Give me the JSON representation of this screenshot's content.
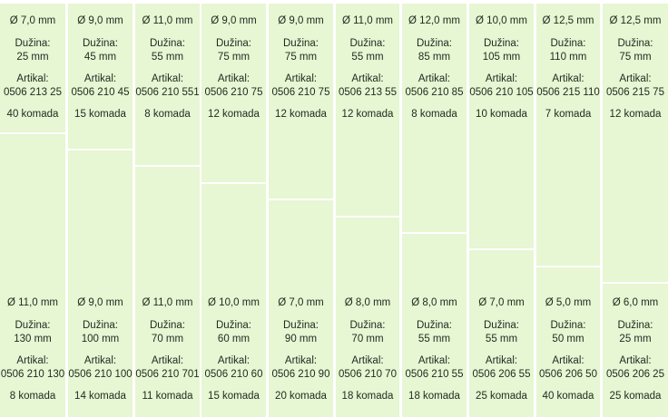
{
  "colors": {
    "cell_background": "#e7f6d3",
    "divider": "#ffffff",
    "text": "#1e2a1e"
  },
  "columns": [
    {
      "top": {
        "diameter": "Ø 7,0 mm",
        "length_label": "Dužina:",
        "length": "25 mm",
        "article_label": "Artikal:",
        "article": "0506 213 25",
        "quantity": "40 komada"
      },
      "bottom": {
        "diameter": "Ø 11,0 mm",
        "length_label": "Dužina:",
        "length": "130 mm",
        "article_label": "Artikal:",
        "article": "0506 210 130",
        "quantity": "8 komada"
      }
    },
    {
      "top": {
        "diameter": "Ø 9,0 mm",
        "length_label": "Dužina:",
        "length": "45 mm",
        "article_label": "Artikal:",
        "article": "0506 210 45",
        "quantity": "15 komada"
      },
      "bottom": {
        "diameter": "Ø 9,0 mm",
        "length_label": "Dužina:",
        "length": "100 mm",
        "article_label": "Artikal:",
        "article": "0506 210 100",
        "quantity": "14 komada"
      }
    },
    {
      "top": {
        "diameter": "Ø 11,0 mm",
        "length_label": "Dužina:",
        "length": "55 mm",
        "article_label": "Artikal:",
        "article": "0506 210 551",
        "quantity": "8 komada"
      },
      "bottom": {
        "diameter": "Ø 11,0 mm",
        "length_label": "Dužina:",
        "length": "70 mm",
        "article_label": "Artikal:",
        "article": "0506 210 701",
        "quantity": "11 komada"
      }
    },
    {
      "top": {
        "diameter": "Ø 9,0 mm",
        "length_label": "Dužina:",
        "length": "75 mm",
        "article_label": "Artikal:",
        "article": "0506 210 75",
        "quantity": "12 komada"
      },
      "bottom": {
        "diameter": "Ø 10,0 mm",
        "length_label": "Dužina:",
        "length": "60 mm",
        "article_label": "Artikal:",
        "article": "0506 210 60",
        "quantity": "15 komada"
      }
    },
    {
      "top": {
        "diameter": "Ø 9,0 mm",
        "length_label": "Dužina:",
        "length": "75 mm",
        "article_label": "Artikal:",
        "article": "0506 210 75",
        "quantity": "12 komada"
      },
      "bottom": {
        "diameter": "Ø 7,0 mm",
        "length_label": "Dužina:",
        "length": "90 mm",
        "article_label": "Artikal:",
        "article": "0506 210 90",
        "quantity": "20 komada"
      }
    },
    {
      "top": {
        "diameter": "Ø 11,0 mm",
        "length_label": "Dužina:",
        "length": "55 mm",
        "article_label": "Artikal:",
        "article": "0506 213 55",
        "quantity": "12 komada"
      },
      "bottom": {
        "diameter": "Ø 8,0 mm",
        "length_label": "Dužina:",
        "length": "70 mm",
        "article_label": "Artikal:",
        "article": "0506 210 70",
        "quantity": "18 komada"
      }
    },
    {
      "top": {
        "diameter": "Ø 12,0 mm",
        "length_label": "Dužina:",
        "length": "85 mm",
        "article_label": "Artikal:",
        "article": "0506 210 85",
        "quantity": "8 komada"
      },
      "bottom": {
        "diameter": "Ø 8,0 mm",
        "length_label": "Dužina:",
        "length": "55 mm",
        "article_label": "Artikal:",
        "article": "0506 210 55",
        "quantity": "18 komada"
      }
    },
    {
      "top": {
        "diameter": "Ø 10,0 mm",
        "length_label": "Dužina:",
        "length": "105 mm",
        "article_label": "Artikal:",
        "article": "0506 210 105",
        "quantity": "10 komada"
      },
      "bottom": {
        "diameter": "Ø 7,0 mm",
        "length_label": "Dužina:",
        "length": "55 mm",
        "article_label": "Artikal:",
        "article": "0506 206 55",
        "quantity": "25 komada"
      }
    },
    {
      "top": {
        "diameter": "Ø 12,5 mm",
        "length_label": "Dužina:",
        "length": "110 mm",
        "article_label": "Artikal:",
        "article": "0506 215 110",
        "quantity": "7 komada"
      },
      "bottom": {
        "diameter": "Ø 5,0 mm",
        "length_label": "Dužina:",
        "length": "50 mm",
        "article_label": "Artikal:",
        "article": "0506 206 50",
        "quantity": "40 komada"
      }
    },
    {
      "top": {
        "diameter": "Ø 12,5 mm",
        "length_label": "Dužina:",
        "length": "75 mm",
        "article_label": "Artikal:",
        "article": "0506 215 75",
        "quantity": "12 komada"
      },
      "bottom": {
        "diameter": "Ø 6,0 mm",
        "length_label": "Dužina:",
        "length": "25 mm",
        "article_label": "Artikal:",
        "article": "0506 206 25",
        "quantity": "25 komada"
      }
    }
  ]
}
